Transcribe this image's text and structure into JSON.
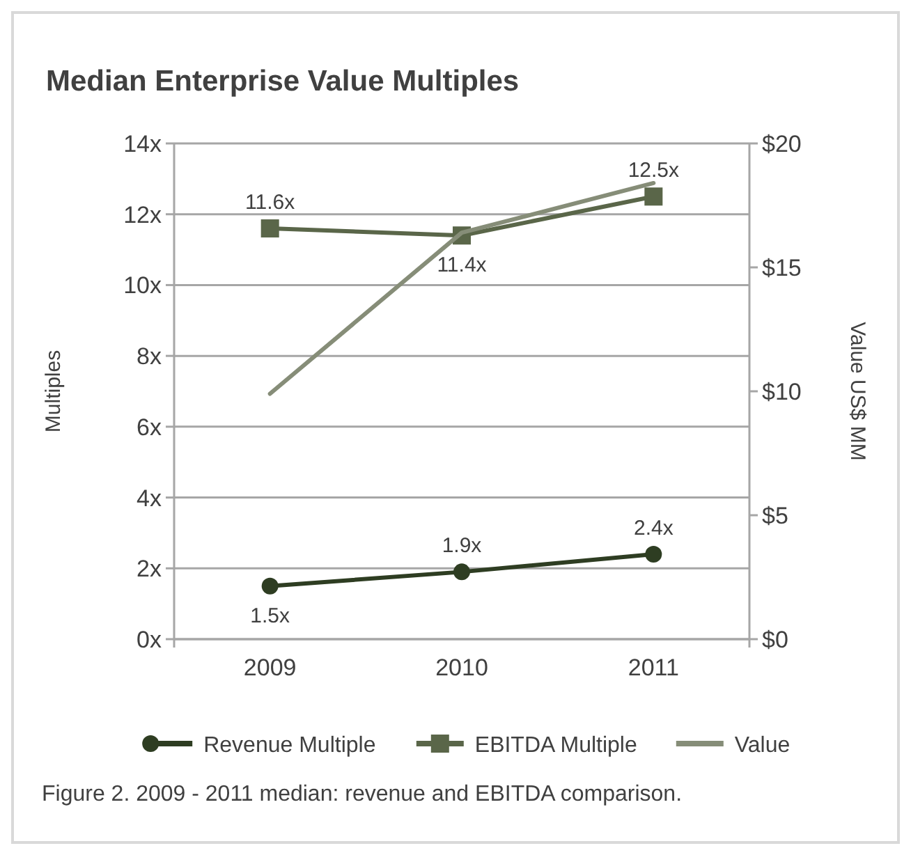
{
  "chart_data": {
    "type": "line",
    "title": "Median Enterprise Value Multiples",
    "ylabel": "Multiples",
    "y2label": "Value US$ MM",
    "categories": [
      "2009",
      "2010",
      "2011"
    ],
    "series": [
      {
        "name": "Revenue Multiple",
        "color": "#2e3d22",
        "values": [
          1.5,
          1.9,
          2.4
        ],
        "marker": "circle",
        "value_labels": [
          "1.5x",
          "1.9x",
          "2.4x"
        ]
      },
      {
        "name": "EBITDA Multiple",
        "color": "#5a6649",
        "values": [
          11.6,
          11.4,
          12.5
        ],
        "marker": "square",
        "value_labels": [
          "11.6x",
          "11.4x",
          "12.5x"
        ]
      },
      {
        "name": "Value",
        "color": "#868d78",
        "values": [
          9.9,
          16.4,
          18.4
        ],
        "marker": "none",
        "axis": "y2"
      }
    ],
    "ylim": [
      0,
      14
    ],
    "yticks": [
      {
        "value": 0,
        "label": "0x"
      },
      {
        "value": 2,
        "label": "2x"
      },
      {
        "value": 4,
        "label": "4x"
      },
      {
        "value": 6,
        "label": "6x"
      },
      {
        "value": 8,
        "label": "8x"
      },
      {
        "value": 10,
        "label": "10x"
      },
      {
        "value": 12,
        "label": "12x"
      },
      {
        "value": 14,
        "label": "14x"
      }
    ],
    "y2lim": [
      0,
      20
    ],
    "y2ticks": [
      {
        "value": 0,
        "label": "$0"
      },
      {
        "value": 5,
        "label": "$5"
      },
      {
        "value": 10,
        "label": "$10"
      },
      {
        "value": 15,
        "label": "$15"
      },
      {
        "value": 20,
        "label": "$20"
      }
    ],
    "grid": "y",
    "legend": "bottom",
    "annotations": [
      "Figure 2. 2009 - 2011 median: revenue and EBITDA comparison."
    ]
  }
}
